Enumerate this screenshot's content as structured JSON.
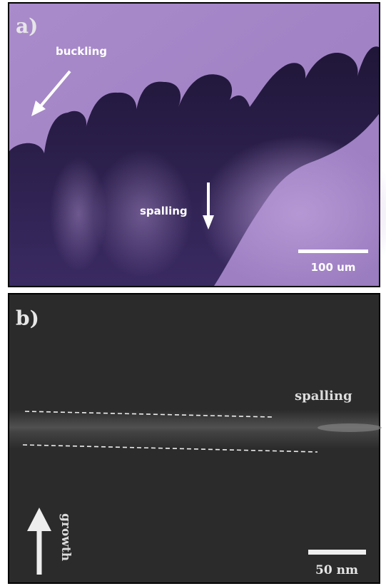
{
  "panel_a": {
    "label": "a)",
    "annotations": [
      "buckling",
      "spalling"
    ],
    "scale_bar": "100 um"
  },
  "panel_b": {
    "label": "b)",
    "annotations": [
      "spalling",
      "growth"
    ],
    "scale_bar": "50 nm"
  }
}
